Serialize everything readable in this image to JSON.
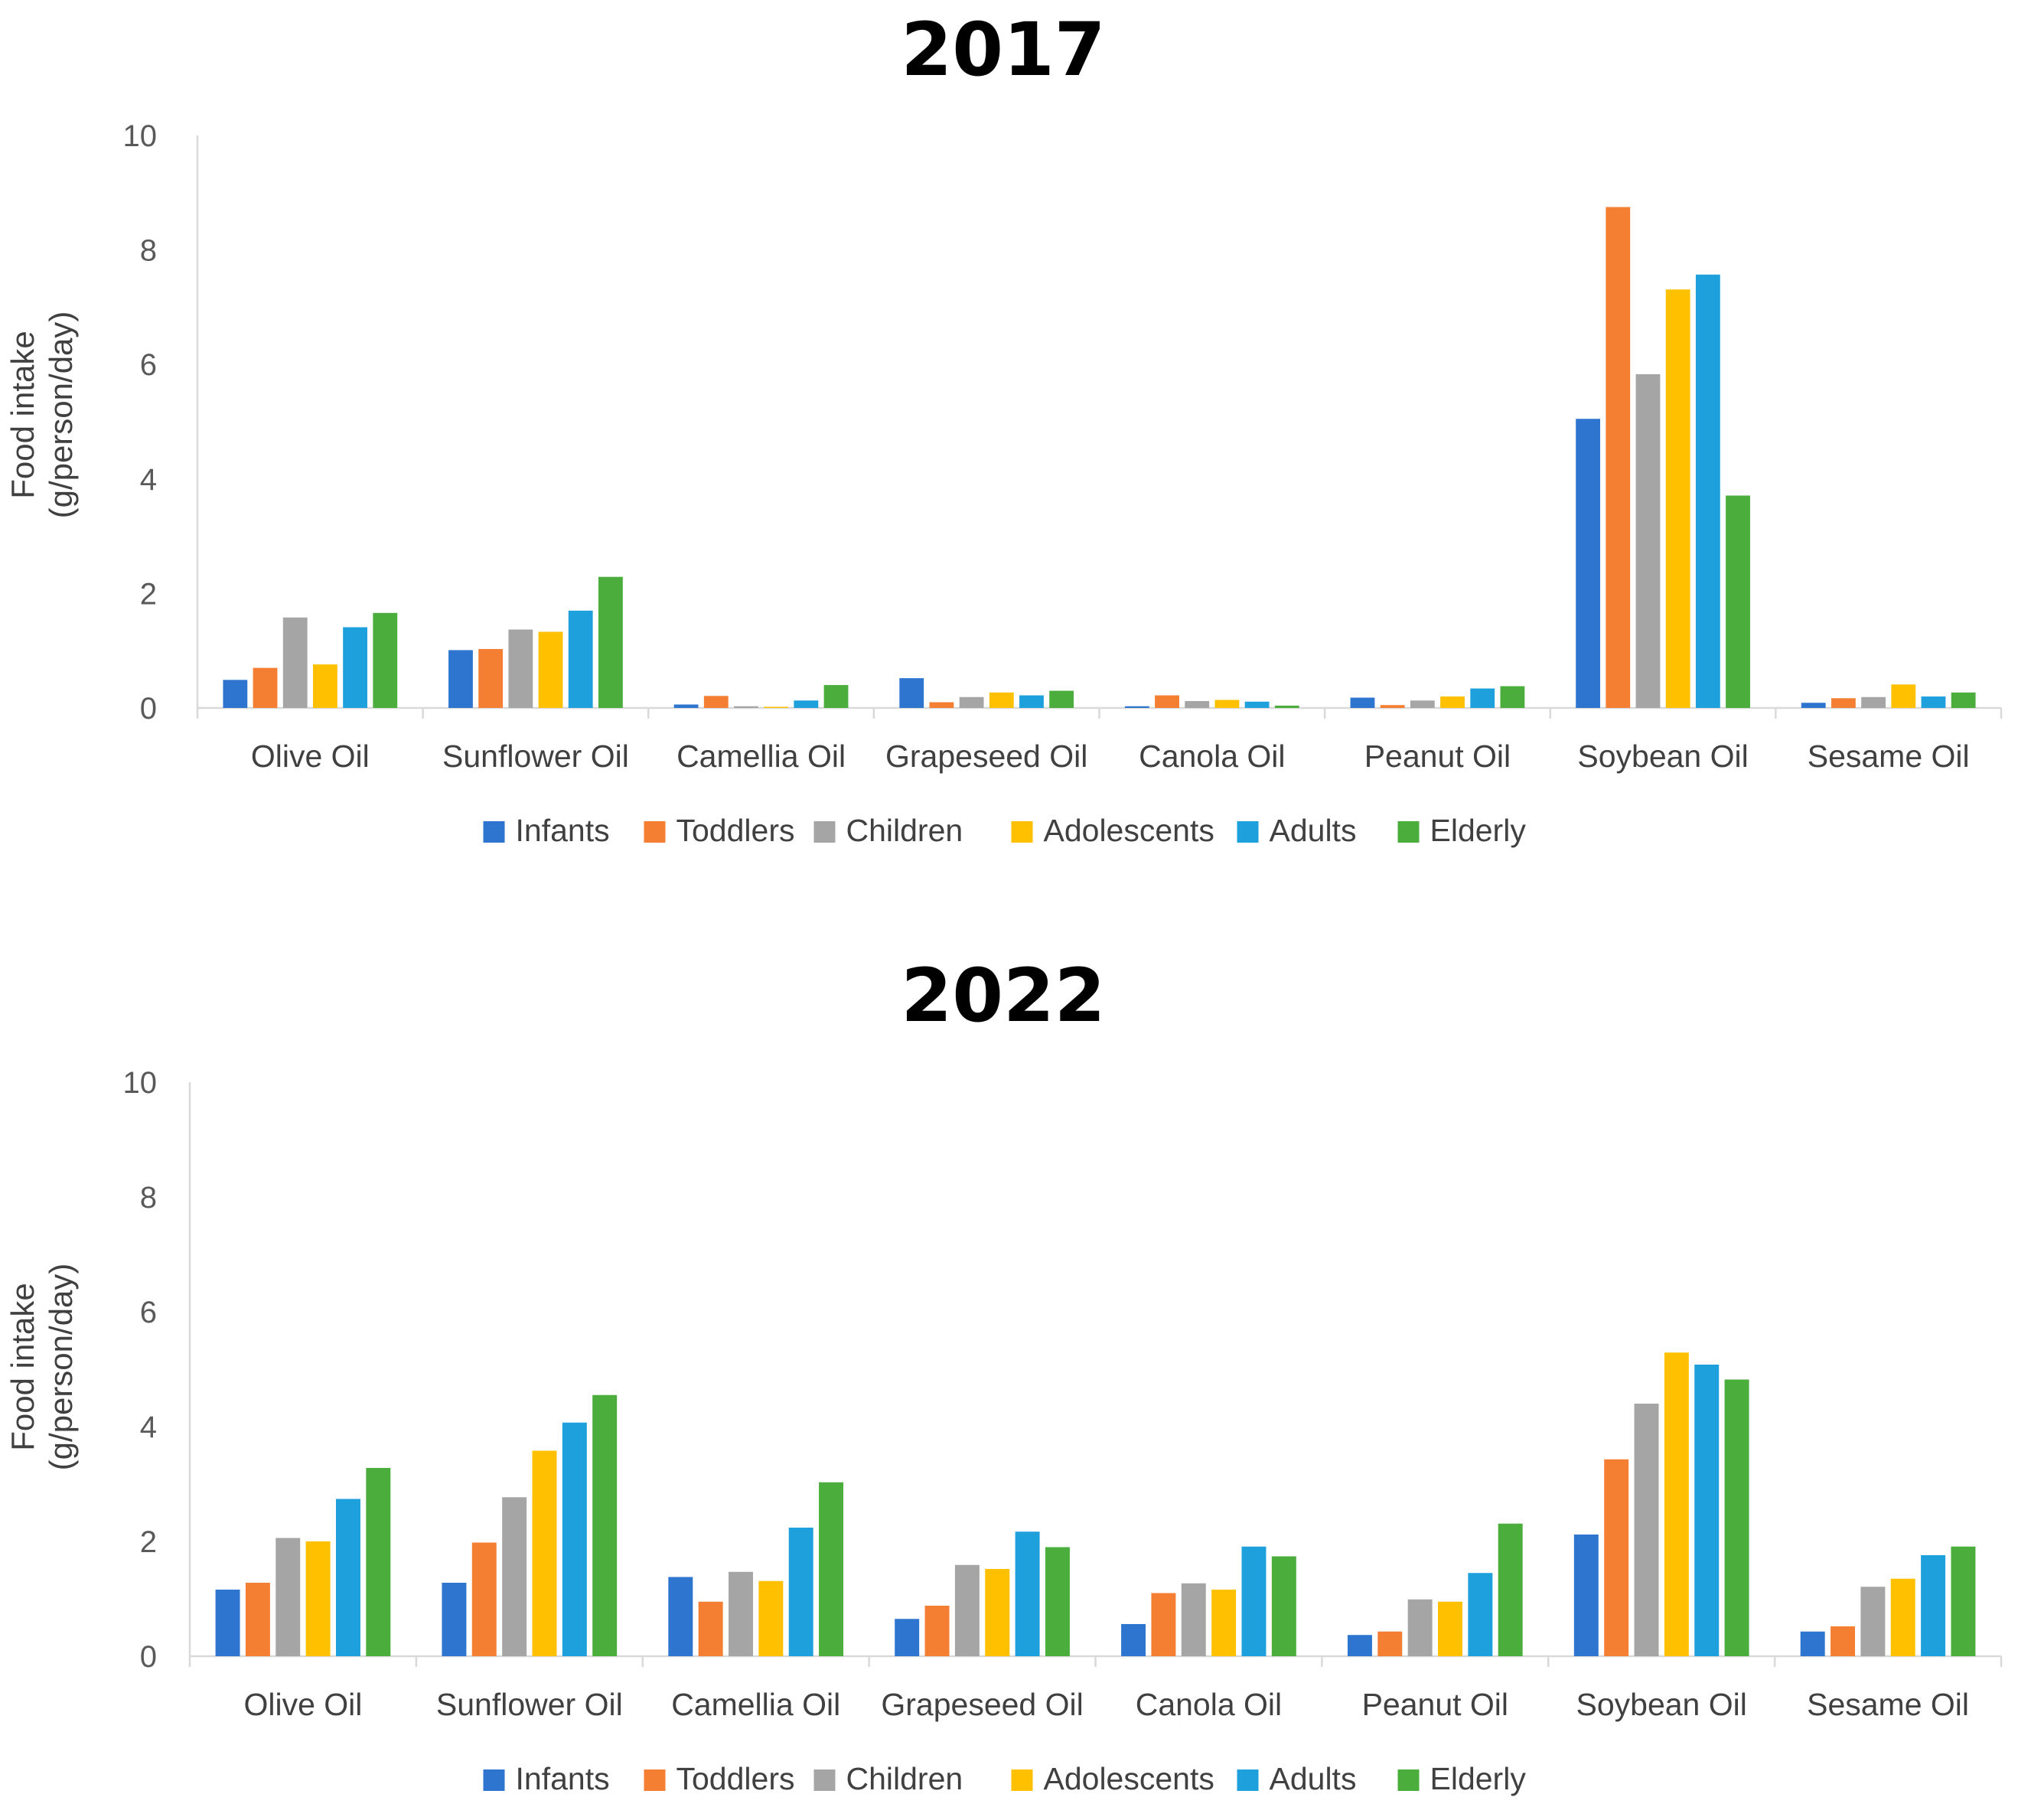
{
  "chart_data": [
    {
      "type": "bar",
      "title": "2017",
      "ylabel_line1": "Food intake",
      "ylabel_line2": "(g/person/day)",
      "xlabel": "",
      "ylim": [
        0,
        10
      ],
      "yticks": [
        0,
        2,
        4,
        6,
        8,
        10
      ],
      "grid": false,
      "legend": "bottom",
      "categories": [
        "Olive Oil",
        "Sunflower Oil",
        "Camellia Oil",
        "Grapeseed Oil",
        "Canola Oil",
        "Peanut Oil",
        "Soybean Oil",
        "Sesame Oil"
      ],
      "series": [
        {
          "name": "Infants",
          "color": "#2e75d0",
          "values": [
            0.49,
            1.01,
            0.06,
            0.52,
            0.03,
            0.18,
            5.05,
            0.09
          ]
        },
        {
          "name": "Toddlers",
          "color": "#f47f33",
          "values": [
            0.7,
            1.03,
            0.21,
            0.1,
            0.22,
            0.05,
            8.75,
            0.17
          ]
        },
        {
          "name": "Children",
          "color": "#a5a5a5",
          "values": [
            1.58,
            1.37,
            0.03,
            0.19,
            0.12,
            0.13,
            5.83,
            0.19
          ]
        },
        {
          "name": "Adolescents",
          "color": "#ffc000",
          "values": [
            0.76,
            1.33,
            0.02,
            0.27,
            0.14,
            0.2,
            7.31,
            0.41
          ]
        },
        {
          "name": "Adults",
          "color": "#1ea0dc",
          "values": [
            1.41,
            1.7,
            0.13,
            0.22,
            0.11,
            0.34,
            7.57,
            0.2
          ]
        },
        {
          "name": "Elderly",
          "color": "#4aad3c",
          "values": [
            1.66,
            2.29,
            0.4,
            0.3,
            0.04,
            0.38,
            3.71,
            0.27
          ]
        }
      ]
    },
    {
      "type": "bar",
      "title": "2022",
      "ylabel_line1": "Food intake",
      "ylabel_line2": "(g/person/day)",
      "xlabel": "",
      "ylim": [
        0,
        10
      ],
      "yticks": [
        0,
        2,
        4,
        6,
        8,
        10
      ],
      "grid": false,
      "legend": "bottom",
      "categories": [
        "Olive Oil",
        "Sunflower Oil",
        "Camellia Oil",
        "Grapeseed Oil",
        "Canola Oil",
        "Peanut Oil",
        "Soybean Oil",
        "Sesame Oil"
      ],
      "series": [
        {
          "name": "Infants",
          "color": "#2e75d0",
          "values": [
            1.16,
            1.28,
            1.38,
            0.65,
            0.56,
            0.37,
            2.12,
            0.43
          ]
        },
        {
          "name": "Toddlers",
          "color": "#f47f33",
          "values": [
            1.28,
            1.98,
            0.95,
            0.88,
            1.1,
            0.43,
            3.43,
            0.52
          ]
        },
        {
          "name": "Children",
          "color": "#a5a5a5",
          "values": [
            2.06,
            2.77,
            1.47,
            1.59,
            1.27,
            0.99,
            4.4,
            1.21
          ]
        },
        {
          "name": "Adolescents",
          "color": "#ffc000",
          "values": [
            2.0,
            3.58,
            1.31,
            1.52,
            1.16,
            0.95,
            5.29,
            1.35
          ]
        },
        {
          "name": "Adults",
          "color": "#1ea0dc",
          "values": [
            2.74,
            4.07,
            2.24,
            2.17,
            1.91,
            1.45,
            5.08,
            1.76
          ]
        },
        {
          "name": "Elderly",
          "color": "#4aad3c",
          "values": [
            3.28,
            4.55,
            3.03,
            1.9,
            1.74,
            2.31,
            4.82,
            1.91
          ]
        }
      ]
    }
  ]
}
